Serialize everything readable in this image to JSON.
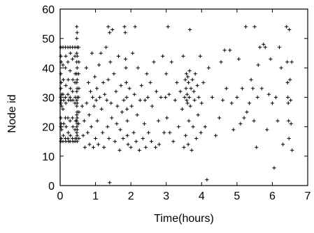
{
  "chart_data": {
    "type": "scatter",
    "title": "",
    "xlabel": "Time(hours)",
    "ylabel": "Node id",
    "xlim": [
      0,
      7
    ],
    "ylim": [
      0,
      60
    ],
    "xticks": [
      0,
      1,
      2,
      3,
      4,
      5,
      6,
      7
    ],
    "yticks": [
      0,
      10,
      20,
      30,
      40,
      50,
      60
    ],
    "xtick_labels": [
      "0",
      "1",
      "2",
      "3",
      "4",
      "5",
      "6",
      "7"
    ],
    "ytick_labels": [
      "0",
      "10",
      "20",
      "30",
      "40",
      "50",
      "60"
    ],
    "grid": false,
    "legend": "none",
    "marker": "plus",
    "colors": {
      "marker": "#000000",
      "axis": "#000000",
      "background": "#ffffff"
    },
    "series": [
      {
        "points": [
          [
            0.02,
            47
          ],
          [
            0.02,
            44
          ],
          [
            0.03,
            42
          ],
          [
            0.02,
            38
          ],
          [
            0.03,
            35
          ],
          [
            0.02,
            33
          ],
          [
            0.04,
            31
          ],
          [
            0.02,
            30
          ],
          [
            0.03,
            29
          ],
          [
            0.02,
            28
          ],
          [
            0.04,
            27
          ],
          [
            0.02,
            23
          ],
          [
            0.03,
            21
          ],
          [
            0.02,
            20
          ],
          [
            0.04,
            19
          ],
          [
            0.03,
            16
          ],
          [
            0.02,
            15
          ],
          [
            0.08,
            47
          ],
          [
            0.08,
            41
          ],
          [
            0.09,
            36
          ],
          [
            0.08,
            31
          ],
          [
            0.1,
            29
          ],
          [
            0.08,
            26
          ],
          [
            0.1,
            21
          ],
          [
            0.09,
            17
          ],
          [
            0.08,
            15
          ],
          [
            0.15,
            47
          ],
          [
            0.16,
            44
          ],
          [
            0.15,
            40
          ],
          [
            0.16,
            34
          ],
          [
            0.15,
            30
          ],
          [
            0.16,
            28
          ],
          [
            0.15,
            23
          ],
          [
            0.17,
            20
          ],
          [
            0.15,
            16
          ],
          [
            0.16,
            15
          ],
          [
            0.22,
            47
          ],
          [
            0.22,
            42
          ],
          [
            0.23,
            36
          ],
          [
            0.22,
            31
          ],
          [
            0.24,
            29
          ],
          [
            0.22,
            23
          ],
          [
            0.23,
            18
          ],
          [
            0.22,
            16
          ],
          [
            0.24,
            15
          ],
          [
            0.28,
            47
          ],
          [
            0.29,
            45
          ],
          [
            0.28,
            39
          ],
          [
            0.29,
            33
          ],
          [
            0.28,
            30
          ],
          [
            0.3,
            29
          ],
          [
            0.28,
            22
          ],
          [
            0.29,
            17
          ],
          [
            0.28,
            15
          ],
          [
            0.35,
            47
          ],
          [
            0.35,
            43
          ],
          [
            0.36,
            36
          ],
          [
            0.35,
            32
          ],
          [
            0.36,
            29
          ],
          [
            0.35,
            23
          ],
          [
            0.36,
            20
          ],
          [
            0.35,
            16
          ],
          [
            0.36,
            15
          ],
          [
            0.42,
            47
          ],
          [
            0.42,
            44
          ],
          [
            0.43,
            38
          ],
          [
            0.42,
            35
          ],
          [
            0.43,
            30
          ],
          [
            0.42,
            28
          ],
          [
            0.44,
            22
          ],
          [
            0.42,
            19
          ],
          [
            0.43,
            16
          ],
          [
            0.42,
            15
          ],
          [
            0.47,
            54
          ],
          [
            0.48,
            52
          ],
          [
            0.47,
            50
          ],
          [
            0.48,
            47
          ],
          [
            0.47,
            45
          ],
          [
            0.48,
            44
          ],
          [
            0.47,
            42
          ],
          [
            0.48,
            40
          ],
          [
            0.47,
            38
          ],
          [
            0.48,
            36
          ],
          [
            0.47,
            35
          ],
          [
            0.48,
            33
          ],
          [
            0.47,
            32
          ],
          [
            0.48,
            30
          ],
          [
            0.47,
            29
          ],
          [
            0.48,
            28
          ],
          [
            0.47,
            27
          ],
          [
            0.48,
            25
          ],
          [
            0.47,
            24
          ],
          [
            0.48,
            23
          ],
          [
            0.47,
            22
          ],
          [
            0.48,
            21
          ],
          [
            0.47,
            20
          ],
          [
            0.48,
            19
          ],
          [
            0.47,
            18
          ],
          [
            0.48,
            17
          ],
          [
            0.47,
            16
          ],
          [
            0.48,
            15
          ],
          [
            0.52,
            47
          ],
          [
            0.53,
            42
          ],
          [
            0.52,
            38
          ],
          [
            0.53,
            33
          ],
          [
            0.52,
            30
          ],
          [
            0.53,
            25
          ],
          [
            0.52,
            21
          ],
          [
            0.53,
            16
          ],
          [
            0.62,
            27
          ],
          [
            0.65,
            17
          ],
          [
            0.68,
            22
          ],
          [
            0.7,
            13
          ],
          [
            0.74,
            40
          ],
          [
            0.75,
            28
          ],
          [
            0.78,
            18
          ],
          [
            0.8,
            35
          ],
          [
            0.82,
            24
          ],
          [
            0.83,
            14
          ],
          [
            0.86,
            32
          ],
          [
            0.88,
            20
          ],
          [
            0.9,
            45
          ],
          [
            0.92,
            30
          ],
          [
            0.94,
            13
          ],
          [
            0.96,
            27
          ],
          [
            0.98,
            37
          ],
          [
            1.0,
            16
          ],
          [
            1.02,
            29
          ],
          [
            1.04,
            33
          ],
          [
            1.05,
            22
          ],
          [
            1.08,
            14
          ],
          [
            1.1,
            41
          ],
          [
            1.12,
            30
          ],
          [
            1.15,
            45
          ],
          [
            1.17,
            26
          ],
          [
            1.2,
            18
          ],
          [
            1.22,
            35
          ],
          [
            1.24,
            13
          ],
          [
            1.26,
            31
          ],
          [
            1.3,
            47
          ],
          [
            1.32,
            29
          ],
          [
            1.34,
            20
          ],
          [
            1.36,
            36
          ],
          [
            1.36,
            54
          ],
          [
            1.38,
            16
          ],
          [
            1.4,
            52
          ],
          [
            1.42,
            42
          ],
          [
            1.44,
            28
          ],
          [
            1.46,
            23
          ],
          [
            1.48,
            53
          ],
          [
            1.4,
            1
          ],
          [
            1.52,
            38
          ],
          [
            1.55,
            15
          ],
          [
            1.58,
            32
          ],
          [
            1.6,
            21
          ],
          [
            1.62,
            27
          ],
          [
            1.65,
            44
          ],
          [
            1.68,
            12
          ],
          [
            1.7,
            19
          ],
          [
            1.72,
            34
          ],
          [
            1.75,
            25
          ],
          [
            1.78,
            16
          ],
          [
            1.8,
            29
          ],
          [
            1.82,
            54
          ],
          [
            1.84,
            52
          ],
          [
            1.85,
            43
          ],
          [
            1.86,
            40
          ],
          [
            1.87,
            35
          ],
          [
            1.88,
            30
          ],
          [
            1.89,
            26
          ],
          [
            1.9,
            22
          ],
          [
            1.9,
            17
          ],
          [
            1.92,
            14
          ],
          [
            1.96,
            33
          ],
          [
            2.0,
            13
          ],
          [
            2.02,
            27
          ],
          [
            2.05,
            45
          ],
          [
            2.08,
            18
          ],
          [
            2.1,
            31
          ],
          [
            2.12,
            54
          ],
          [
            2.15,
            15
          ],
          [
            2.18,
            24
          ],
          [
            2.2,
            40
          ],
          [
            2.24,
            12
          ],
          [
            2.26,
            29
          ],
          [
            2.3,
            34
          ],
          [
            2.34,
            16
          ],
          [
            2.38,
            21
          ],
          [
            2.4,
            29
          ],
          [
            2.42,
            13
          ],
          [
            2.45,
            38
          ],
          [
            2.48,
            30
          ],
          [
            2.5,
            18
          ],
          [
            2.55,
            35
          ],
          [
            2.58,
            15
          ],
          [
            2.6,
            27
          ],
          [
            2.65,
            42
          ],
          [
            2.7,
            13
          ],
          [
            2.72,
            32
          ],
          [
            2.78,
            22
          ],
          [
            2.8,
            14
          ],
          [
            2.85,
            30
          ],
          [
            2.9,
            44
          ],
          [
            2.94,
            18
          ],
          [
            2.98,
            30
          ],
          [
            3.0,
            38
          ],
          [
            3.02,
            23
          ],
          [
            3.05,
            54
          ],
          [
            3.08,
            31
          ],
          [
            3.1,
            18
          ],
          [
            3.15,
            42
          ],
          [
            3.2,
            15
          ],
          [
            3.25,
            29
          ],
          [
            3.3,
            35
          ],
          [
            3.35,
            20
          ],
          [
            3.4,
            32
          ],
          [
            3.45,
            26
          ],
          [
            3.48,
            44
          ],
          [
            3.5,
            13
          ],
          [
            3.52,
            30
          ],
          [
            3.54,
            36
          ],
          [
            3.55,
            17
          ],
          [
            3.56,
            33
          ],
          [
            3.57,
            38
          ],
          [
            3.58,
            29
          ],
          [
            3.59,
            31
          ],
          [
            3.6,
            28
          ],
          [
            3.61,
            37
          ],
          [
            3.62,
            14
          ],
          [
            3.63,
            35
          ],
          [
            3.64,
            22
          ],
          [
            3.65,
            30
          ],
          [
            3.66,
            39
          ],
          [
            3.67,
            53
          ],
          [
            3.68,
            27
          ],
          [
            3.7,
            33
          ],
          [
            3.72,
            12
          ],
          [
            3.74,
            36
          ],
          [
            3.76,
            20
          ],
          [
            3.78,
            32
          ],
          [
            3.8,
            29
          ],
          [
            3.82,
            38
          ],
          [
            3.85,
            16
          ],
          [
            3.88,
            34
          ],
          [
            3.9,
            24
          ],
          [
            3.92,
            30
          ],
          [
            3.96,
            44
          ],
          [
            3.98,
            18
          ],
          [
            4.0,
            28
          ],
          [
            4.05,
            35
          ],
          [
            4.1,
            20
          ],
          [
            4.15,
            2
          ],
          [
            4.2,
            40
          ],
          [
            4.3,
            30
          ],
          [
            4.4,
            17
          ],
          [
            4.5,
            23
          ],
          [
            4.55,
            42
          ],
          [
            4.6,
            29
          ],
          [
            4.65,
            46
          ],
          [
            4.7,
            33
          ],
          [
            4.8,
            46
          ],
          [
            4.85,
            28
          ],
          [
            4.9,
            19
          ],
          [
            5.0,
            30
          ],
          [
            5.05,
            43
          ],
          [
            5.1,
            21
          ],
          [
            5.15,
            33
          ],
          [
            5.2,
            23
          ],
          [
            5.25,
            54
          ],
          [
            5.28,
            25
          ],
          [
            5.35,
            28
          ],
          [
            5.4,
            36
          ],
          [
            5.45,
            33
          ],
          [
            5.48,
            22
          ],
          [
            5.5,
            54
          ],
          [
            5.55,
            13
          ],
          [
            5.58,
            30
          ],
          [
            5.6,
            41
          ],
          [
            5.65,
            47
          ],
          [
            5.7,
            33
          ],
          [
            5.75,
            48
          ],
          [
            5.8,
            47
          ],
          [
            5.85,
            19
          ],
          [
            5.9,
            31
          ],
          [
            5.95,
            43
          ],
          [
            6.0,
            28
          ],
          [
            6.05,
            6
          ],
          [
            6.1,
            30
          ],
          [
            6.15,
            22
          ],
          [
            6.2,
            47
          ],
          [
            6.25,
            40
          ],
          [
            6.3,
            14
          ],
          [
            6.4,
            54
          ],
          [
            6.42,
            42
          ],
          [
            6.43,
            35
          ],
          [
            6.44,
            30
          ],
          [
            6.45,
            28
          ],
          [
            6.46,
            22
          ],
          [
            6.47,
            16
          ],
          [
            6.48,
            53
          ],
          [
            6.5,
            36
          ],
          [
            6.52,
            29
          ],
          [
            6.53,
            21
          ],
          [
            6.55,
            42
          ],
          [
            6.56,
            12
          ]
        ]
      }
    ]
  }
}
